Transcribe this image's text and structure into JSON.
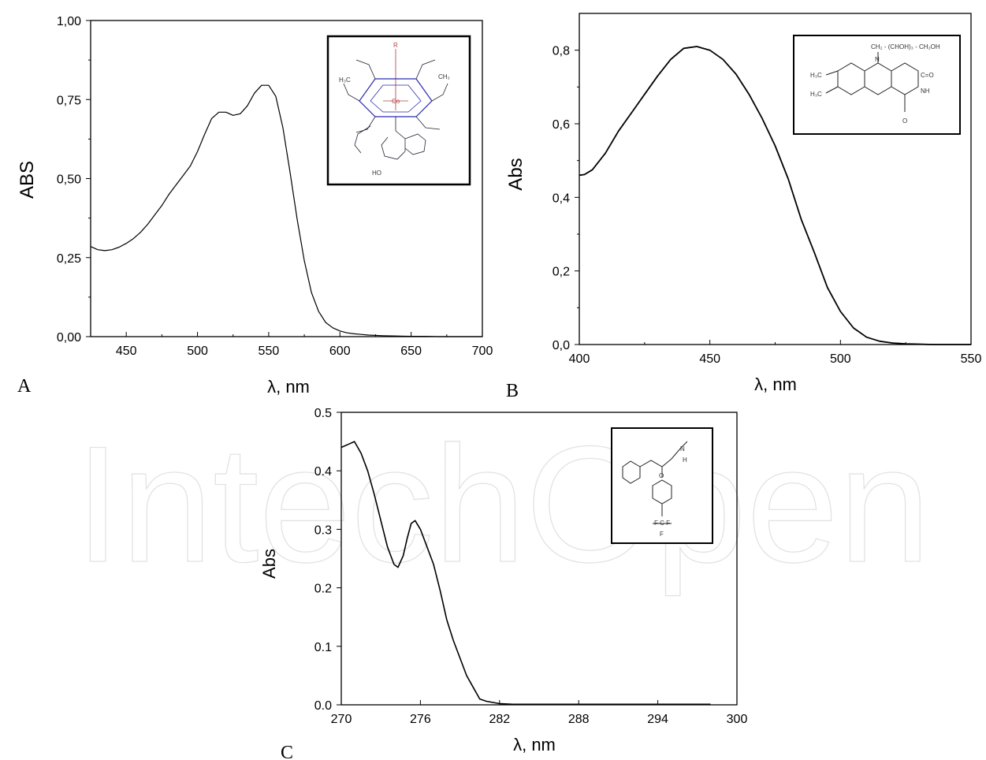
{
  "watermark": "IntechOpen",
  "chart_data": [
    {
      "type": "line",
      "panel_label": "A",
      "xlabel": "λ, nm",
      "ylabel": "ABS",
      "xlim": [
        425,
        700
      ],
      "ylim": [
        0,
        1
      ],
      "x_ticks": [
        450,
        500,
        550,
        600,
        650,
        700
      ],
      "x_tick_labels": [
        "450",
        "500",
        "550",
        "600",
        "650",
        "700"
      ],
      "y_ticks": [
        0,
        0.25,
        0.5,
        0.75,
        1.0
      ],
      "y_tick_labels": [
        "0,00",
        "0,25",
        "0,50",
        "0,75",
        "1,00"
      ],
      "inset": "chemical structure",
      "series": [
        {
          "x": [
            425,
            430,
            435,
            440,
            445,
            450,
            455,
            460,
            465,
            470,
            475,
            480,
            485,
            490,
            495,
            500,
            505,
            510,
            515,
            520,
            525,
            530,
            535,
            540,
            545,
            550,
            555,
            560,
            565,
            570,
            575,
            580,
            585,
            590,
            595,
            600,
            605,
            610,
            615,
            620,
            630,
            640,
            650,
            660,
            670,
            680,
            690,
            700
          ],
          "y": [
            0.285,
            0.275,
            0.272,
            0.275,
            0.283,
            0.295,
            0.31,
            0.33,
            0.355,
            0.385,
            0.415,
            0.45,
            0.48,
            0.51,
            0.54,
            0.585,
            0.64,
            0.69,
            0.71,
            0.71,
            0.7,
            0.705,
            0.73,
            0.77,
            0.795,
            0.795,
            0.76,
            0.66,
            0.52,
            0.37,
            0.24,
            0.14,
            0.08,
            0.045,
            0.028,
            0.018,
            0.012,
            0.009,
            0.007,
            0.005,
            0.003,
            0.002,
            0.001,
            0.001,
            0.0,
            0.0,
            0.0,
            0.0
          ]
        }
      ]
    },
    {
      "type": "line",
      "panel_label": "B",
      "xlabel": "λ, nm",
      "ylabel": "Abs",
      "xlim": [
        400,
        550
      ],
      "ylim": [
        0,
        0.9
      ],
      "x_ticks": [
        400,
        450,
        500,
        550
      ],
      "x_tick_labels": [
        "400",
        "450",
        "500",
        "550"
      ],
      "y_ticks": [
        0,
        0.2,
        0.4,
        0.6,
        0.8
      ],
      "y_tick_labels": [
        "0,0",
        "0,2",
        "0,4",
        "0,6",
        "0,8"
      ],
      "inset": "chemical structure",
      "series": [
        {
          "x": [
            400,
            402,
            405,
            410,
            415,
            420,
            425,
            430,
            435,
            440,
            445,
            450,
            455,
            460,
            465,
            470,
            475,
            480,
            485,
            490,
            495,
            500,
            505,
            510,
            515,
            520,
            525,
            530,
            535,
            540,
            545,
            550
          ],
          "y": [
            0.46,
            0.462,
            0.475,
            0.52,
            0.58,
            0.63,
            0.68,
            0.73,
            0.775,
            0.805,
            0.81,
            0.8,
            0.775,
            0.735,
            0.68,
            0.615,
            0.54,
            0.45,
            0.34,
            0.25,
            0.155,
            0.09,
            0.045,
            0.02,
            0.009,
            0.004,
            0.002,
            0.001,
            0.0,
            0.0,
            0.0,
            0.0
          ]
        }
      ]
    },
    {
      "type": "line",
      "panel_label": "C",
      "xlabel": "λ, nm",
      "ylabel": "Abs",
      "xlim": [
        270,
        300
      ],
      "ylim": [
        0,
        0.5
      ],
      "x_ticks": [
        270,
        276,
        282,
        288,
        294,
        300
      ],
      "x_tick_labels": [
        "270",
        "276",
        "282",
        "288",
        "294",
        "300"
      ],
      "y_ticks": [
        0,
        0.1,
        0.2,
        0.3,
        0.4,
        0.5
      ],
      "y_tick_labels": [
        "0.0",
        "0.1",
        "0.2",
        "0.3",
        "0.4",
        "0.5"
      ],
      "inset": "chemical structure",
      "series": [
        {
          "x": [
            270,
            270.5,
            271,
            271.5,
            272,
            272.5,
            273,
            273.5,
            274,
            274.3,
            274.7,
            275,
            275.3,
            275.6,
            276,
            276.5,
            277,
            277.5,
            278,
            278.5,
            279,
            279.5,
            280,
            280.5,
            281,
            281.5,
            282,
            283,
            284,
            285,
            287,
            290,
            293,
            296,
            298
          ],
          "y": [
            0.44,
            0.445,
            0.45,
            0.43,
            0.4,
            0.36,
            0.315,
            0.27,
            0.24,
            0.235,
            0.255,
            0.285,
            0.31,
            0.315,
            0.3,
            0.27,
            0.24,
            0.195,
            0.145,
            0.11,
            0.08,
            0.05,
            0.03,
            0.01,
            0.006,
            0.004,
            0.002,
            0.001,
            0.001,
            0.001,
            0.001,
            0.001,
            0.001,
            0.001,
            0.001
          ]
        }
      ]
    }
  ]
}
